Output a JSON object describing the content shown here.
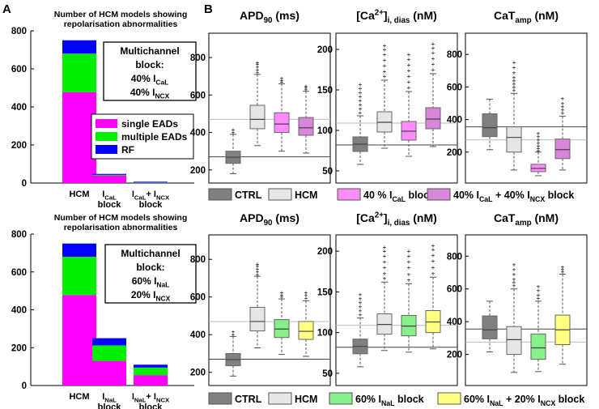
{
  "panel_labels": {
    "a": "A",
    "b": "B"
  },
  "colors": {
    "single": "#ff00ff",
    "multiple": "#00ee00",
    "rf": "#0000ff",
    "ctrl": "#808080",
    "hcm": "#e6e6e6",
    "cal_block": "#ff8cff",
    "cal_ncx_block": "#d985d9",
    "nal_block": "#88f088",
    "nal_ncx_block": "#ffff80"
  },
  "chart_data": [
    {
      "id": "A1",
      "type": "bar",
      "stacked": true,
      "title": "Number of HCM models showing\nrepolarisation abnormalities",
      "categories": [
        [
          "HCM"
        ],
        [
          "I_{CaL}",
          "block"
        ],
        [
          "I_{CaL}+ I_{NCX}",
          "block"
        ]
      ],
      "ylim": [
        0,
        800
      ],
      "yticks": [
        0,
        200,
        400,
        600,
        800
      ],
      "series": [
        {
          "name": "single EADs",
          "color": "#ff00ff",
          "values": [
            478,
            40,
            4
          ]
        },
        {
          "name": "multiple EADs",
          "color": "#00ee00",
          "values": [
            202,
            3,
            1
          ]
        },
        {
          "name": "RF",
          "color": "#0000ff",
          "values": [
            70,
            5,
            2
          ]
        }
      ],
      "annotation": [
        "Multichannel",
        "block:",
        "40% I_{CaL}",
        "40% I_{NCX}"
      ],
      "legend": "right"
    },
    {
      "id": "A2",
      "type": "bar",
      "stacked": true,
      "title": "Number of HCM models showing\nrepolarisation abnormalities",
      "categories": [
        [
          "HCM"
        ],
        [
          "I_{NaL}",
          "block"
        ],
        [
          "I_{NaL}+ I_{NCX}",
          "block"
        ]
      ],
      "ylim": [
        0,
        800
      ],
      "yticks": [
        0,
        200,
        400,
        600,
        800
      ],
      "series": [
        {
          "name": "single EADs",
          "color": "#ff00ff",
          "values": [
            478,
            130,
            55
          ]
        },
        {
          "name": "multiple EADs",
          "color": "#00ee00",
          "values": [
            202,
            82,
            40
          ]
        },
        {
          "name": "RF",
          "color": "#0000ff",
          "values": [
            70,
            38,
            15
          ]
        }
      ],
      "annotation": [
        "Multichannel",
        "block:",
        "60% I_{NaL}",
        "20% I_{NCX}"
      ]
    },
    {
      "id": "B1a",
      "type": "box",
      "title": "APD_{90} (ms)",
      "ylim": [
        130,
        930
      ],
      "yticks": [
        200,
        400,
        600,
        800
      ],
      "ref_lines": [
        270,
        470
      ],
      "boxes": [
        {
          "group": "CTRL",
          "whisker_low": 180,
          "q1": 235,
          "median": 268,
          "q3": 300,
          "whisker_high": 390,
          "outliers": [
            400,
            415
          ]
        },
        {
          "group": "HCM",
          "whisker_low": 330,
          "q1": 420,
          "median": 470,
          "q3": 545,
          "whisker_high": 710,
          "outliers": [
            720,
            735,
            750,
            765,
            775
          ]
        },
        {
          "group": "40 % I_{CaL} block",
          "whisker_low": 300,
          "q1": 400,
          "median": 445,
          "q3": 505,
          "whisker_high": 660,
          "outliers": [
            670,
            680,
            690
          ]
        },
        {
          "group": "40% I_{CaL} + 40% I_{NCX} block",
          "whisker_low": 290,
          "q1": 385,
          "median": 425,
          "q3": 480,
          "whisker_high": 620,
          "outliers": [
            630,
            640,
            650
          ]
        }
      ]
    },
    {
      "id": "B1b",
      "type": "box",
      "title": "[Ca^{2+}]_{i, dias} (nM)",
      "ylim": [
        35,
        220
      ],
      "yticks": [
        50,
        100,
        150,
        200
      ],
      "ref_lines": [
        82,
        109
      ],
      "boxes": [
        {
          "group": "CTRL",
          "whisker_low": 58,
          "q1": 74,
          "median": 83,
          "q3": 92,
          "whisker_high": 118,
          "outliers": [
            122,
            127,
            132,
            137,
            142,
            147,
            152,
            157
          ]
        },
        {
          "group": "HCM",
          "whisker_low": 78,
          "q1": 98,
          "median": 110,
          "q3": 123,
          "whisker_high": 162,
          "outliers": [
            167,
            173,
            180,
            187,
            194,
            200,
            205
          ]
        },
        {
          "group": "40 % I_{CaL} block",
          "whisker_low": 68,
          "q1": 88,
          "median": 99,
          "q3": 111,
          "whisker_high": 148,
          "outliers": [
            153,
            160,
            167,
            174,
            181,
            188,
            194
          ]
        },
        {
          "group": "40% I_{CaL} + 40% I_{NCX} block",
          "whisker_low": 80,
          "q1": 102,
          "median": 114,
          "q3": 128,
          "whisker_high": 170,
          "outliers": [
            175,
            182,
            189,
            196,
            202,
            207
          ]
        }
      ]
    },
    {
      "id": "B1c",
      "type": "box",
      "title": "CaT_{amp} (nM)",
      "ylim": [
        10,
        930
      ],
      "yticks": [
        200,
        400,
        600,
        800
      ],
      "ref_lines": [
        355,
        275
      ],
      "boxes": [
        {
          "group": "CTRL",
          "whisker_low": 215,
          "q1": 295,
          "median": 350,
          "q3": 435,
          "whisker_high": 525,
          "outliers": []
        },
        {
          "group": "HCM",
          "whisker_low": 90,
          "q1": 200,
          "median": 290,
          "q3": 355,
          "whisker_high": 560,
          "outliers": [
            580,
            600,
            620,
            640,
            660,
            690,
            720,
            750
          ]
        },
        {
          "group": "40 % I_{CaL} block",
          "whisker_low": 55,
          "q1": 80,
          "median": 100,
          "q3": 125,
          "whisker_high": 200,
          "outliers": [
            210,
            225,
            240,
            255,
            275,
            295,
            315
          ]
        },
        {
          "group": "40% I_{CaL} + 40% I_{NCX} block",
          "whisker_low": 90,
          "q1": 160,
          "median": 215,
          "q3": 280,
          "whisker_high": 420,
          "outliers": [
            440,
            460,
            480,
            500,
            530
          ]
        }
      ]
    },
    {
      "id": "B2a",
      "type": "box",
      "title": "APD_{90} (ms)",
      "ylim": [
        130,
        930
      ],
      "yticks": [
        200,
        400,
        600,
        800
      ],
      "ref_lines": [
        270,
        470
      ],
      "boxes": [
        {
          "group": "CTRL",
          "whisker_low": 180,
          "q1": 235,
          "median": 268,
          "q3": 300,
          "whisker_high": 390,
          "outliers": [
            400,
            415
          ]
        },
        {
          "group": "HCM",
          "whisker_low": 330,
          "q1": 420,
          "median": 470,
          "q3": 545,
          "whisker_high": 710,
          "outliers": [
            720,
            735,
            750,
            765,
            775
          ]
        },
        {
          "group": "60% I_{NaL} block",
          "whisker_low": 295,
          "q1": 385,
          "median": 430,
          "q3": 480,
          "whisker_high": 590,
          "outliers": [
            600,
            612,
            625
          ]
        },
        {
          "group": "60% I_{NaL} + 20% I_{NCX} block",
          "whisker_low": 285,
          "q1": 375,
          "median": 418,
          "q3": 470,
          "whisker_high": 580,
          "outliers": [
            595,
            610,
            625
          ]
        }
      ]
    },
    {
      "id": "B2b",
      "type": "box",
      "title": "[Ca^{2+}]_{i, dias} (nM)",
      "ylim": [
        35,
        220
      ],
      "yticks": [
        50,
        100,
        150,
        200
      ],
      "ref_lines": [
        82,
        109
      ],
      "boxes": [
        {
          "group": "CTRL",
          "whisker_low": 58,
          "q1": 74,
          "median": 83,
          "q3": 92,
          "whisker_high": 118,
          "outliers": [
            122,
            127,
            132,
            137,
            142,
            147
          ]
        },
        {
          "group": "HCM",
          "whisker_low": 78,
          "q1": 98,
          "median": 110,
          "q3": 123,
          "whisker_high": 162,
          "outliers": [
            167,
            173,
            180,
            187,
            194,
            200,
            205
          ]
        },
        {
          "group": "60% I_{NaL} block",
          "whisker_low": 76,
          "q1": 96,
          "median": 108,
          "q3": 121,
          "whisker_high": 160,
          "outliers": [
            165,
            172,
            180,
            187,
            194,
            200
          ]
        },
        {
          "group": "60% I_{NaL} + 20% I_{NCX} block",
          "whisker_low": 80,
          "q1": 100,
          "median": 113,
          "q3": 127,
          "whisker_high": 168,
          "outliers": [
            173,
            180,
            188,
            195,
            202,
            207
          ]
        }
      ]
    },
    {
      "id": "B2c",
      "type": "box",
      "title": "CaT_{amp} (nM)",
      "ylim": [
        10,
        930
      ],
      "yticks": [
        200,
        400,
        600,
        800
      ],
      "ref_lines": [
        355,
        275
      ],
      "boxes": [
        {
          "group": "CTRL",
          "whisker_low": 215,
          "q1": 295,
          "median": 350,
          "q3": 435,
          "whisker_high": 525,
          "outliers": []
        },
        {
          "group": "HCM",
          "whisker_low": 90,
          "q1": 200,
          "median": 290,
          "q3": 370,
          "whisker_high": 600,
          "outliers": [
            620,
            640,
            660,
            690,
            720,
            750
          ]
        },
        {
          "group": "60% I_{NaL} block",
          "whisker_low": 95,
          "q1": 170,
          "median": 240,
          "q3": 325,
          "whisker_high": 525,
          "outliers": [
            545,
            565,
            590,
            615
          ]
        },
        {
          "group": "60% I_{NaL} + 20% I_{NCX} block",
          "whisker_low": 140,
          "q1": 260,
          "median": 350,
          "q3": 440,
          "whisker_high": 690,
          "outliers": [
            705,
            720,
            735
          ]
        }
      ]
    }
  ],
  "box_legends": [
    {
      "items": [
        {
          "label": "CTRL",
          "color": "#808080"
        },
        {
          "label": "HCM",
          "color": "#e6e6e6"
        },
        {
          "label": "40 % I_{CaL} block",
          "color": "#ff8cff"
        },
        {
          "label": "40% I_{CaL} + 40% I_{NCX} block",
          "color": "#d985d9"
        }
      ]
    },
    {
      "items": [
        {
          "label": "CTRL",
          "color": "#808080"
        },
        {
          "label": "HCM",
          "color": "#e6e6e6"
        },
        {
          "label": "60% I_{NaL} block",
          "color": "#88f088"
        },
        {
          "label": "60% I_{NaL} + 20% I_{NCX} block",
          "color": "#ffff80"
        }
      ]
    }
  ]
}
